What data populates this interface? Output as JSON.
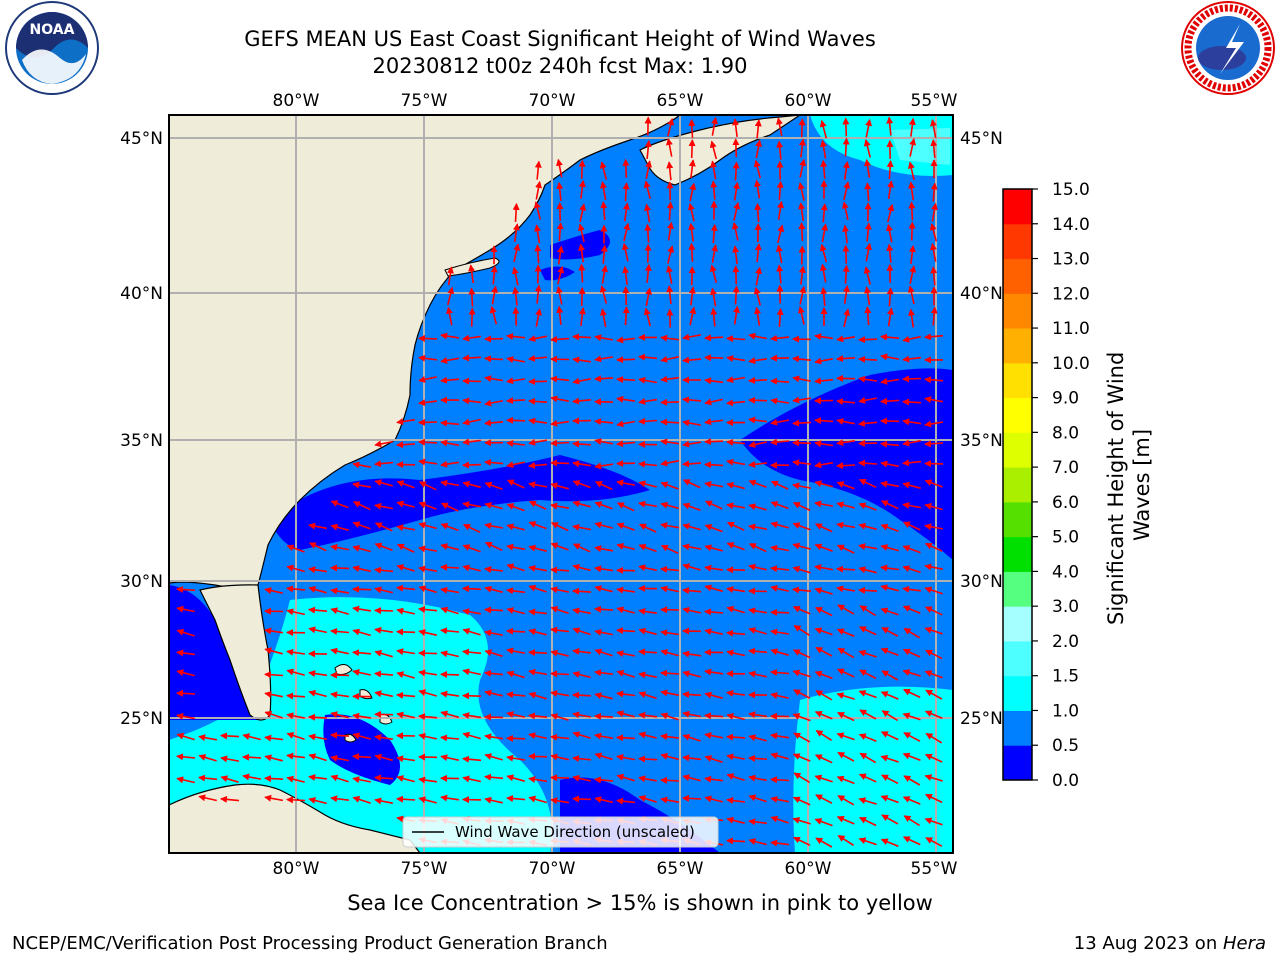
{
  "header": {
    "title_line1": "GEFS MEAN US East Coast Significant Height of Wind Waves",
    "title_line2": "20230812 t00z 240h fcst   Max: 1.90"
  },
  "logos": {
    "left": {
      "icon": "noaa-logo",
      "text": "NOAA"
    },
    "right": {
      "icon": "nws-logo",
      "text": "NATIONAL WEATHER SERVICE"
    }
  },
  "map": {
    "lon_ticks": [
      "80°W",
      "75°W",
      "70°W",
      "65°W",
      "60°W",
      "55°W"
    ],
    "lat_ticks": [
      "45°N",
      "40°N",
      "35°N",
      "30°N",
      "25°N"
    ],
    "legend_label": "Wind Wave Direction (unscaled)",
    "colors": {
      "land": "#efedda",
      "ocean_0_05": "#0000ff",
      "ocean_05_10": "#0080ff",
      "ocean_10_15": "#00ffff",
      "ocean_15_20": "#4dffff",
      "arrows": "#ff0000",
      "grid": "#b0b0b0"
    }
  },
  "colorbar": {
    "label": "Significant Height of Wind Waves [m]",
    "ticks": [
      "0.0",
      "0.5",
      "1.0",
      "1.5",
      "2.0",
      "3.0",
      "4.0",
      "5.0",
      "6.0",
      "7.0",
      "8.0",
      "9.0",
      "10.0",
      "11.0",
      "12.0",
      "13.0",
      "14.0",
      "15.0"
    ],
    "colors": [
      "#0000ff",
      "#0080ff",
      "#00ffff",
      "#4dffff",
      "#a6ffff",
      "#55ff80",
      "#00e000",
      "#55e000",
      "#aaee00",
      "#ddff00",
      "#ffff00",
      "#ffe000",
      "#ffb000",
      "#ff8800",
      "#ff6000",
      "#ff3800",
      "#ff0000"
    ]
  },
  "footer": {
    "ice_note": "Sea Ice Concentration > 15% is shown in pink to yellow",
    "left": "NCEP/EMC/Verification Post Processing Product Generation Branch",
    "right_date": "13 Aug 2023 on ",
    "right_host": "Hera"
  }
}
